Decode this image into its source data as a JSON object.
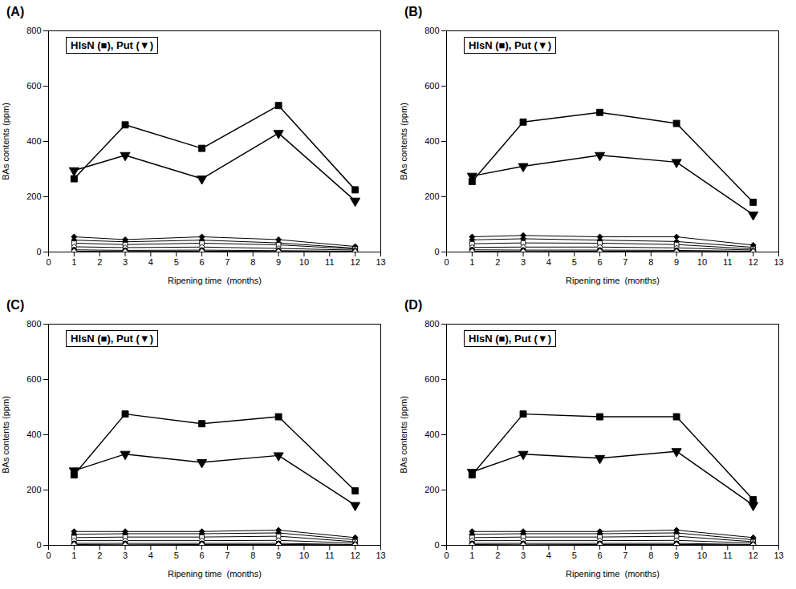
{
  "chart_data": [
    {
      "type": "line",
      "title": "(A)",
      "xlabel": "Ripening time  (months)",
      "ylabel": "BAs contents (ppm)",
      "x": [
        1,
        3,
        6,
        9,
        12
      ],
      "xlim": [
        0,
        13
      ],
      "xticks": [
        0,
        1,
        2,
        3,
        4,
        5,
        6,
        7,
        8,
        9,
        10,
        11,
        12,
        13
      ],
      "ylim": [
        0,
        800
      ],
      "yticks": [
        0,
        200,
        400,
        600,
        800
      ],
      "grid": false,
      "annotations": [
        "HIsN (■), Put (▼)"
      ],
      "series": [
        {
          "values": [
            265,
            460,
            375,
            530,
            225
          ],
          "errors": [
            5,
            8,
            6,
            7,
            5
          ],
          "marker": "square",
          "color": "black"
        },
        {
          "values": [
            295,
            350,
            265,
            430,
            185
          ],
          "errors": [
            5,
            6,
            5,
            6,
            5
          ],
          "marker": "triangle-down",
          "color": "black"
        },
        {
          "values": [
            55,
            45,
            55,
            45,
            20
          ],
          "marker": "diamond",
          "color": "black"
        },
        {
          "values": [
            43,
            37,
            43,
            33,
            14
          ],
          "marker": "diamond",
          "color": "black"
        },
        {
          "values": [
            32,
            27,
            32,
            26,
            11
          ],
          "marker": "open-square",
          "color": "black"
        },
        {
          "values": [
            19,
            16,
            18,
            13,
            7
          ],
          "marker": "open-diamond",
          "color": "black"
        },
        {
          "values": [
            8,
            6,
            7,
            5,
            3
          ],
          "marker": "circle",
          "color": "black"
        },
        {
          "values": [
            3,
            2,
            3,
            2,
            2
          ],
          "marker": "open-diamond",
          "color": "black"
        }
      ]
    },
    {
      "type": "line",
      "title": "(B)",
      "xlabel": "Ripening time  (months)",
      "ylabel": "BAs contents (ppm)",
      "x": [
        1,
        3,
        6,
        9,
        12
      ],
      "xlim": [
        0,
        13
      ],
      "xticks": [
        0,
        1,
        2,
        3,
        4,
        5,
        6,
        7,
        8,
        9,
        10,
        11,
        12,
        13
      ],
      "ylim": [
        0,
        800
      ],
      "yticks": [
        0,
        200,
        400,
        600,
        800
      ],
      "grid": false,
      "annotations": [
        "HIsN (■), Put (▼)"
      ],
      "series": [
        {
          "values": [
            255,
            470,
            505,
            465,
            180
          ],
          "errors": [
            5,
            7,
            8,
            7,
            5
          ],
          "marker": "square",
          "color": "black"
        },
        {
          "values": [
            275,
            310,
            350,
            325,
            135
          ],
          "errors": [
            5,
            6,
            5,
            6,
            5
          ],
          "marker": "triangle-down",
          "color": "black"
        },
        {
          "values": [
            55,
            60,
            55,
            55,
            25
          ],
          "marker": "diamond",
          "color": "black"
        },
        {
          "values": [
            44,
            48,
            43,
            38,
            17
          ],
          "marker": "diamond",
          "color": "black"
        },
        {
          "values": [
            30,
            33,
            32,
            27,
            11
          ],
          "marker": "open-square",
          "color": "black"
        },
        {
          "values": [
            17,
            18,
            18,
            15,
            7
          ],
          "marker": "open-diamond",
          "color": "black"
        },
        {
          "values": [
            8,
            7,
            7,
            6,
            3
          ],
          "marker": "circle",
          "color": "black"
        },
        {
          "values": [
            3,
            2,
            3,
            2,
            2
          ],
          "marker": "open-diamond",
          "color": "black"
        }
      ]
    },
    {
      "type": "line",
      "title": "(C)",
      "xlabel": "Ripening time  (months)",
      "ylabel": "BAs contents (ppm)",
      "x": [
        1,
        3,
        6,
        9,
        12
      ],
      "xlim": [
        0,
        13
      ],
      "xticks": [
        0,
        1,
        2,
        3,
        4,
        5,
        6,
        7,
        8,
        9,
        10,
        11,
        12,
        13
      ],
      "ylim": [
        0,
        800
      ],
      "yticks": [
        0,
        200,
        400,
        600,
        800
      ],
      "grid": false,
      "annotations": [
        "HIsN (■), Put (▼)"
      ],
      "series": [
        {
          "values": [
            255,
            475,
            440,
            465,
            197
          ],
          "errors": [
            5,
            7,
            6,
            7,
            5
          ],
          "marker": "square",
          "color": "black"
        },
        {
          "values": [
            270,
            330,
            300,
            325,
            145
          ],
          "errors": [
            5,
            6,
            5,
            6,
            5
          ],
          "marker": "triangle-down",
          "color": "black"
        },
        {
          "values": [
            50,
            50,
            50,
            55,
            28
          ],
          "marker": "diamond",
          "color": "black"
        },
        {
          "values": [
            40,
            42,
            42,
            45,
            20
          ],
          "marker": "diamond",
          "color": "black"
        },
        {
          "values": [
            28,
            30,
            30,
            33,
            13
          ],
          "marker": "open-square",
          "color": "black"
        },
        {
          "values": [
            17,
            17,
            17,
            18,
            8
          ],
          "marker": "open-diamond",
          "color": "black"
        },
        {
          "values": [
            7,
            7,
            7,
            7,
            3
          ],
          "marker": "circle",
          "color": "black"
        },
        {
          "values": [
            3,
            2,
            3,
            3,
            2
          ],
          "marker": "open-diamond",
          "color": "black"
        }
      ]
    },
    {
      "type": "line",
      "title": "(D)",
      "xlabel": "Ripening time  (months)",
      "ylabel": "BAs contents (ppm)",
      "x": [
        1,
        3,
        6,
        9,
        12
      ],
      "xlim": [
        0,
        13
      ],
      "xticks": [
        0,
        1,
        2,
        3,
        4,
        5,
        6,
        7,
        8,
        9,
        10,
        11,
        12,
        13
      ],
      "ylim": [
        0,
        800
      ],
      "yticks": [
        0,
        200,
        400,
        600,
        800
      ],
      "grid": false,
      "annotations": [
        "HIsN (■), Put (▼)"
      ],
      "series": [
        {
          "values": [
            255,
            475,
            465,
            465,
            165
          ],
          "errors": [
            5,
            7,
            6,
            7,
            5
          ],
          "marker": "square",
          "color": "black"
        },
        {
          "values": [
            265,
            330,
            315,
            340,
            145
          ],
          "errors": [
            5,
            6,
            5,
            6,
            5
          ],
          "marker": "triangle-down",
          "color": "black"
        },
        {
          "values": [
            50,
            50,
            50,
            55,
            28
          ],
          "marker": "diamond",
          "color": "black"
        },
        {
          "values": [
            40,
            42,
            42,
            45,
            20
          ],
          "marker": "diamond",
          "color": "black"
        },
        {
          "values": [
            28,
            30,
            30,
            33,
            13
          ],
          "marker": "open-square",
          "color": "black"
        },
        {
          "values": [
            17,
            17,
            17,
            18,
            8
          ],
          "marker": "open-diamond",
          "color": "black"
        },
        {
          "values": [
            7,
            7,
            7,
            7,
            3
          ],
          "marker": "circle",
          "color": "black"
        },
        {
          "values": [
            3,
            2,
            3,
            3,
            2
          ],
          "marker": "open-diamond",
          "color": "black"
        }
      ]
    }
  ]
}
